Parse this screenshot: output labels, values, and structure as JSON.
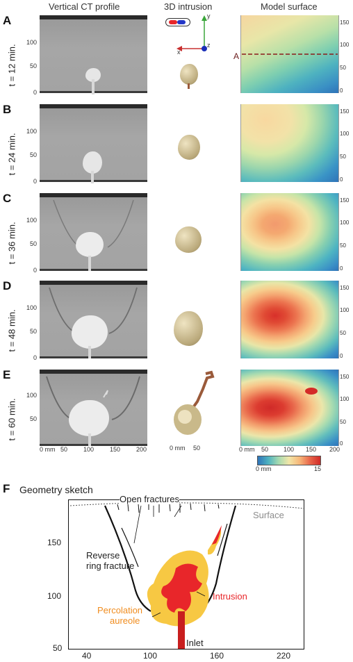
{
  "headers": {
    "ct": "Vertical CT profile",
    "intrusion3d": "3D intrusion",
    "model": "Model surface"
  },
  "rows": [
    {
      "panel": "A",
      "time": "t = 12 min."
    },
    {
      "panel": "B",
      "time": "t = 24 min."
    },
    {
      "panel": "C",
      "time": "t = 36 min."
    },
    {
      "panel": "D",
      "time": "t = 48 min."
    },
    {
      "panel": "E",
      "time": "t = 60 min."
    }
  ],
  "ct_y_ticks": [
    "100",
    "50",
    "0"
  ],
  "ct_x_ticks": [
    "0 mm",
    "50",
    "100",
    "150",
    "200"
  ],
  "model_y_ticks": [
    "150",
    "100",
    "50",
    "0"
  ],
  "model_x_ticks": [
    "0 mm",
    "50",
    "100",
    "150",
    "200"
  ],
  "intrusion_x_ticks": [
    "0 mm",
    "50"
  ],
  "axes3d": {
    "x": "x",
    "y": "y",
    "z": "z"
  },
  "section_marker": "A",
  "colorbar": {
    "min": "0 mm",
    "max": "15"
  },
  "sketch": {
    "panel": "F",
    "title": "Geometry sketch",
    "open_fractures": "Open fractures",
    "surface": "Surface",
    "reverse_ring": "Reverse\nring fracture",
    "reverse_ring_1": "Reverse",
    "reverse_ring_2": "ring fracture",
    "intrusion": "Intrusion",
    "percolation_1": "Percolation",
    "percolation_2": "aureole",
    "inlet": "Inlet",
    "y_ticks": [
      "150",
      "100",
      "50"
    ],
    "x_ticks": [
      "40",
      "100",
      "160",
      "220"
    ]
  },
  "colors": {
    "intrusion": "#e8262a",
    "aureole": "#f7c843",
    "percolation_text": "#f08c1e",
    "surface_text": "#8c8c8c"
  }
}
